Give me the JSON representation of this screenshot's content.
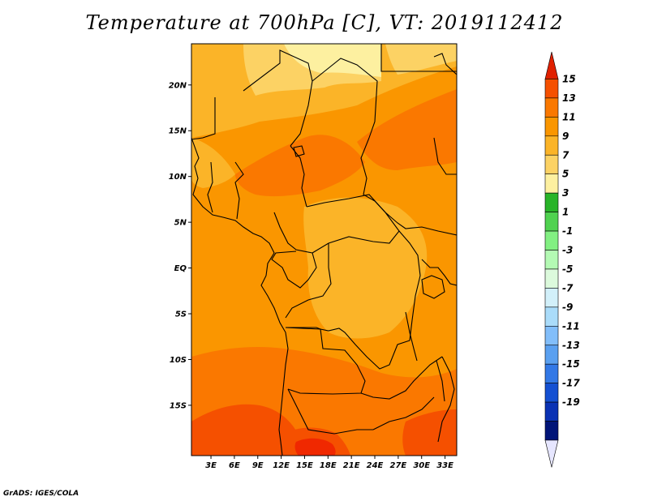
{
  "title": "Temperature at 700hPa [C], VT: 2019112412",
  "credit": "GrADS: IGES/COLA",
  "map": {
    "lat_range": [
      -20.5,
      24.5
    ],
    "lon_range": [
      0.5,
      34.5
    ],
    "lat_ticks": [
      {
        "value": 20,
        "label": "20N"
      },
      {
        "value": 15,
        "label": "15N"
      },
      {
        "value": 10,
        "label": "10N"
      },
      {
        "value": 5,
        "label": "5N"
      },
      {
        "value": 0,
        "label": "EQ"
      },
      {
        "value": -5,
        "label": "5S"
      },
      {
        "value": -10,
        "label": "10S"
      },
      {
        "value": -15,
        "label": "15S"
      }
    ],
    "lon_ticks": [
      {
        "value": 3,
        "label": "3E"
      },
      {
        "value": 6,
        "label": "6E"
      },
      {
        "value": 9,
        "label": "9E"
      },
      {
        "value": 12,
        "label": "12E"
      },
      {
        "value": 15,
        "label": "15E"
      },
      {
        "value": 18,
        "label": "18E"
      },
      {
        "value": 21,
        "label": "21E"
      },
      {
        "value": 24,
        "label": "24E"
      },
      {
        "value": 27,
        "label": "27E"
      },
      {
        "value": 30,
        "label": "30E"
      },
      {
        "value": 33,
        "label": "33E"
      }
    ]
  },
  "colorbar": {
    "labels": [
      "15",
      "13",
      "11",
      "9",
      "7",
      "5",
      "3",
      "1",
      "-1",
      "-3",
      "-5",
      "-7",
      "-9",
      "-11",
      "-13",
      "-15",
      "-17",
      "-19"
    ],
    "colors": [
      "#f02800",
      "#f55000",
      "#fa7800",
      "#fa9600",
      "#fbb428",
      "#fcd264",
      "#fdf0a0",
      "#28b428",
      "#50d250",
      "#82f082",
      "#b4fab4",
      "#dcfadc",
      "#d2f0fa",
      "#aadcfa",
      "#82befa",
      "#5aa0f0",
      "#3278e6",
      "#1450d2",
      "#0a32b4",
      "#001478",
      "#e6e6ff"
    ],
    "top_arrow_color": "#e02000",
    "bottom_arrow_color": "#e6e6ff"
  }
}
